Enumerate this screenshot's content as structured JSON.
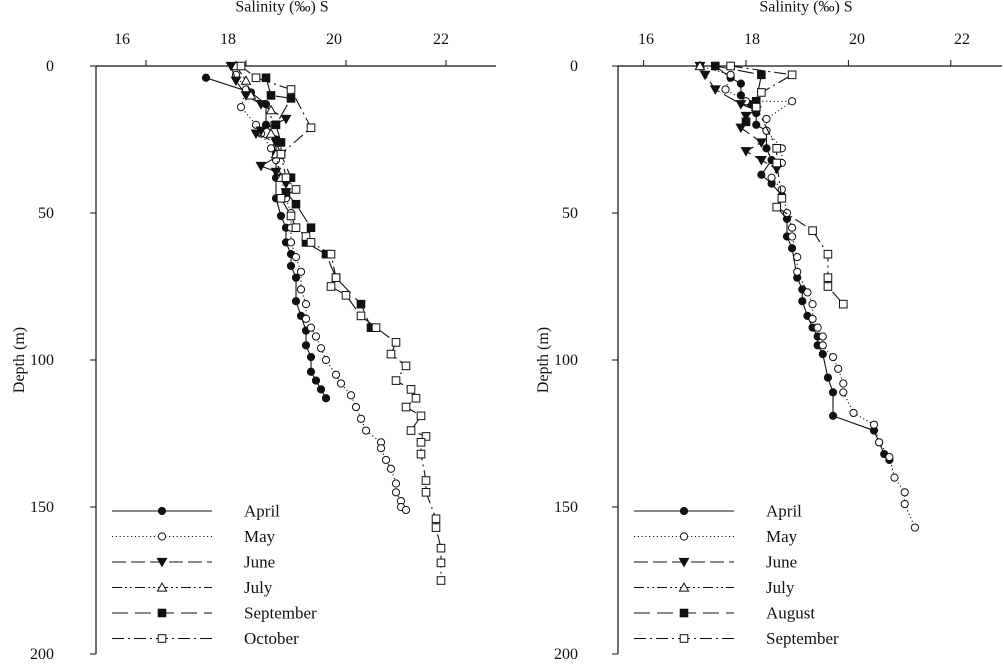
{
  "chart_data": [
    {
      "type": "line",
      "xlabel": "Salinity (‰) S",
      "ylabel": "Depth (m)",
      "xlim": [
        15,
        23
      ],
      "ylim": [
        0,
        200
      ],
      "x_ticks": [
        "16",
        "18",
        "20",
        "22"
      ],
      "y_ticks": [
        "0",
        "50",
        "100",
        "150",
        "200"
      ],
      "x_axis_position": "top",
      "y_reversed": true,
      "grid": false,
      "legend_position": "bottom-left",
      "series": [
        {
          "name": "April",
          "marker": "filled-circle",
          "dash": "solid",
          "points": [
            [
              17.2,
              4
            ],
            [
              18.1,
              9
            ],
            [
              18.4,
              13
            ],
            [
              18.4,
              20
            ],
            [
              18.6,
              25
            ],
            [
              18.6,
              30
            ],
            [
              18.6,
              38
            ],
            [
              18.6,
              45
            ],
            [
              18.7,
              51
            ],
            [
              18.8,
              55
            ],
            [
              18.8,
              60
            ],
            [
              18.9,
              64
            ],
            [
              18.9,
              68
            ],
            [
              19.0,
              72
            ],
            [
              19.0,
              80
            ],
            [
              19.1,
              85
            ],
            [
              19.2,
              90
            ],
            [
              19.2,
              95
            ],
            [
              19.3,
              99
            ],
            [
              19.3,
              104
            ],
            [
              19.4,
              107
            ],
            [
              19.5,
              110
            ],
            [
              19.6,
              113
            ]
          ]
        },
        {
          "name": "May",
          "marker": "open-circle",
          "dash": "dotted",
          "points": [
            [
              17.8,
              3
            ],
            [
              18.0,
              8
            ],
            [
              17.9,
              14
            ],
            [
              18.2,
              20
            ],
            [
              18.3,
              23
            ],
            [
              18.5,
              28
            ],
            [
              18.6,
              32
            ],
            [
              18.7,
              38
            ],
            [
              18.8,
              45
            ],
            [
              18.9,
              50
            ],
            [
              18.9,
              55
            ],
            [
              18.9,
              60
            ],
            [
              19.0,
              65
            ],
            [
              19.1,
              70
            ],
            [
              19.1,
              76
            ],
            [
              19.2,
              81
            ],
            [
              19.2,
              86
            ],
            [
              19.3,
              89
            ],
            [
              19.4,
              92
            ],
            [
              19.5,
              96
            ],
            [
              19.6,
              100
            ],
            [
              19.8,
              105
            ],
            [
              19.9,
              108
            ],
            [
              20.1,
              112
            ],
            [
              20.2,
              116
            ],
            [
              20.3,
              120
            ],
            [
              20.4,
              124
            ],
            [
              20.7,
              128
            ],
            [
              20.7,
              130
            ],
            [
              20.8,
              134
            ],
            [
              20.9,
              137
            ],
            [
              21.0,
              142
            ],
            [
              21.0,
              145
            ],
            [
              21.1,
              148
            ],
            [
              21.1,
              150
            ],
            [
              21.2,
              151
            ]
          ]
        },
        {
          "name": "June",
          "marker": "filled-triangle-down",
          "dash": "long-dash",
          "points": [
            [
              17.7,
              0
            ],
            [
              17.8,
              5
            ],
            [
              18.0,
              10
            ],
            [
              18.3,
              13
            ],
            [
              18.8,
              18
            ],
            [
              18.3,
              22
            ],
            [
              18.2,
              23
            ],
            [
              18.6,
              26
            ],
            [
              18.7,
              30
            ],
            [
              18.3,
              34
            ],
            [
              18.6,
              36
            ],
            [
              18.8,
              40
            ],
            [
              18.8,
              43
            ]
          ]
        },
        {
          "name": "July",
          "marker": "open-triangle-up",
          "dash": "dash-dot-dot",
          "points": [
            [
              17.8,
              0
            ],
            [
              18.0,
              5
            ],
            [
              18.1,
              10
            ],
            [
              18.5,
              15
            ],
            [
              18.5,
              23
            ],
            [
              18.6,
              30
            ],
            [
              18.7,
              38
            ]
          ]
        },
        {
          "name": "September",
          "marker": "filled-square",
          "dash": "long-dash-gap",
          "points": [
            [
              18.4,
              4
            ],
            [
              18.5,
              10
            ],
            [
              18.9,
              11
            ],
            [
              18.6,
              20
            ],
            [
              18.7,
              26
            ],
            [
              18.7,
              30
            ],
            [
              18.9,
              38
            ],
            [
              18.8,
              43
            ],
            [
              19.0,
              47
            ],
            [
              19.3,
              55
            ],
            [
              19.2,
              60
            ],
            [
              19.6,
              64
            ],
            [
              19.8,
              72
            ],
            [
              20.3,
              81
            ],
            [
              20.5,
              89
            ]
          ]
        },
        {
          "name": "October",
          "marker": "open-square",
          "dash": "dash-dot",
          "points": [
            [
              17.9,
              0
            ],
            [
              18.2,
              4
            ],
            [
              18.9,
              8
            ],
            [
              19.3,
              21
            ],
            [
              18.7,
              30
            ],
            [
              18.8,
              38
            ],
            [
              19.0,
              42
            ],
            [
              18.7,
              45
            ],
            [
              18.9,
              51
            ],
            [
              19.0,
              55
            ],
            [
              19.2,
              58
            ],
            [
              19.3,
              60
            ],
            [
              19.7,
              64
            ],
            [
              19.8,
              72
            ],
            [
              19.7,
              75
            ],
            [
              20.0,
              78
            ],
            [
              20.3,
              85
            ],
            [
              20.6,
              89
            ],
            [
              21.0,
              94
            ],
            [
              20.9,
              98
            ],
            [
              21.2,
              102
            ],
            [
              21.0,
              107
            ],
            [
              21.3,
              110
            ],
            [
              21.4,
              113
            ],
            [
              21.2,
              116
            ],
            [
              21.5,
              119
            ],
            [
              21.3,
              124
            ],
            [
              21.6,
              126
            ],
            [
              21.5,
              128
            ],
            [
              21.5,
              132
            ],
            [
              21.6,
              141
            ],
            [
              21.6,
              145
            ],
            [
              21.8,
              154
            ],
            [
              21.8,
              157
            ],
            [
              21.9,
              164
            ],
            [
              21.9,
              169
            ],
            [
              21.9,
              175
            ]
          ]
        }
      ]
    },
    {
      "type": "line",
      "xlabel": "Salinity (‰) S",
      "ylabel": "Depth (m)",
      "xlim": [
        15,
        23
      ],
      "ylim": [
        0,
        200
      ],
      "x_ticks": [
        "16",
        "18",
        "20",
        "22"
      ],
      "y_ticks": [
        "0",
        "50",
        "100",
        "150",
        "200"
      ],
      "x_axis_position": "top",
      "y_reversed": true,
      "grid": false,
      "legend_position": "bottom-left",
      "series": [
        {
          "name": "April",
          "marker": "filled-circle",
          "dash": "solid",
          "points": [
            [
              17.4,
              0
            ],
            [
              17.7,
              4
            ],
            [
              17.9,
              6
            ],
            [
              17.9,
              10
            ],
            [
              18.1,
              13
            ],
            [
              18.2,
              16
            ],
            [
              18.2,
              20
            ],
            [
              18.4,
              22
            ],
            [
              18.4,
              28
            ],
            [
              18.5,
              32
            ],
            [
              18.3,
              37
            ],
            [
              18.5,
              40
            ],
            [
              18.7,
              44
            ],
            [
              18.6,
              48
            ],
            [
              18.8,
              52
            ],
            [
              18.8,
              58
            ],
            [
              18.9,
              62
            ],
            [
              19.0,
              72
            ],
            [
              19.1,
              76
            ],
            [
              19.1,
              80
            ],
            [
              19.2,
              85
            ],
            [
              19.3,
              89
            ],
            [
              19.4,
              92
            ],
            [
              19.4,
              95
            ],
            [
              19.5,
              98
            ],
            [
              19.6,
              106
            ],
            [
              19.7,
              111
            ],
            [
              19.7,
              119
            ],
            [
              20.5,
              124
            ],
            [
              20.6,
              128
            ],
            [
              20.7,
              132
            ],
            [
              20.8,
              134
            ]
          ]
        },
        {
          "name": "May",
          "marker": "open-circle",
          "dash": "dotted",
          "points": [
            [
              17.1,
              0
            ],
            [
              17.7,
              3
            ],
            [
              17.6,
              8
            ],
            [
              18.0,
              12
            ],
            [
              18.9,
              12
            ],
            [
              18.4,
              18
            ],
            [
              18.4,
              22
            ],
            [
              18.7,
              28
            ],
            [
              18.7,
              33
            ],
            [
              18.5,
              38
            ],
            [
              18.7,
              42
            ],
            [
              18.8,
              50
            ],
            [
              18.9,
              55
            ],
            [
              18.9,
              58
            ],
            [
              19.0,
              65
            ],
            [
              19.0,
              70
            ],
            [
              19.2,
              77
            ],
            [
              19.3,
              81
            ],
            [
              19.3,
              86
            ],
            [
              19.4,
              89
            ],
            [
              19.5,
              92
            ],
            [
              19.5,
              95
            ],
            [
              19.7,
              99
            ],
            [
              19.8,
              103
            ],
            [
              19.9,
              108
            ],
            [
              19.9,
              111
            ],
            [
              20.1,
              118
            ],
            [
              20.5,
              122
            ],
            [
              20.6,
              128
            ],
            [
              20.8,
              133
            ],
            [
              20.9,
              140
            ],
            [
              21.1,
              145
            ],
            [
              21.1,
              149
            ],
            [
              21.3,
              157
            ]
          ]
        },
        {
          "name": "June",
          "marker": "filled-triangle-down",
          "dash": "long-dash",
          "points": [
            [
              17.1,
              0
            ],
            [
              17.2,
              3
            ],
            [
              17.4,
              8
            ],
            [
              17.9,
              13
            ],
            [
              18.2,
              15
            ],
            [
              18.0,
              17
            ],
            [
              17.9,
              21
            ],
            [
              18.3,
              26
            ],
            [
              18.0,
              29
            ],
            [
              18.3,
              32
            ],
            [
              18.6,
              35
            ]
          ]
        },
        {
          "name": "July",
          "marker": "open-triangle-up",
          "dash": "dash-dot-dot",
          "points": [
            [
              17.1,
              0
            ]
          ]
        },
        {
          "name": "August",
          "marker": "filled-square",
          "dash": "long-dash-gap",
          "points": [
            [
              17.4,
              0
            ],
            [
              18.3,
              3
            ],
            [
              18.2,
              12
            ],
            [
              18.0,
              19
            ]
          ]
        },
        {
          "name": "September",
          "marker": "open-square",
          "dash": "dash-dot",
          "points": [
            [
              17.7,
              0
            ],
            [
              18.9,
              3
            ],
            [
              18.3,
              9
            ],
            [
              18.2,
              14
            ],
            [
              18.6,
              28
            ],
            [
              18.6,
              33
            ],
            [
              18.7,
              45
            ],
            [
              18.6,
              48
            ],
            [
              19.3,
              56
            ],
            [
              19.6,
              64
            ],
            [
              19.6,
              72
            ],
            [
              19.6,
              75
            ],
            [
              19.9,
              81
            ]
          ]
        }
      ]
    }
  ]
}
